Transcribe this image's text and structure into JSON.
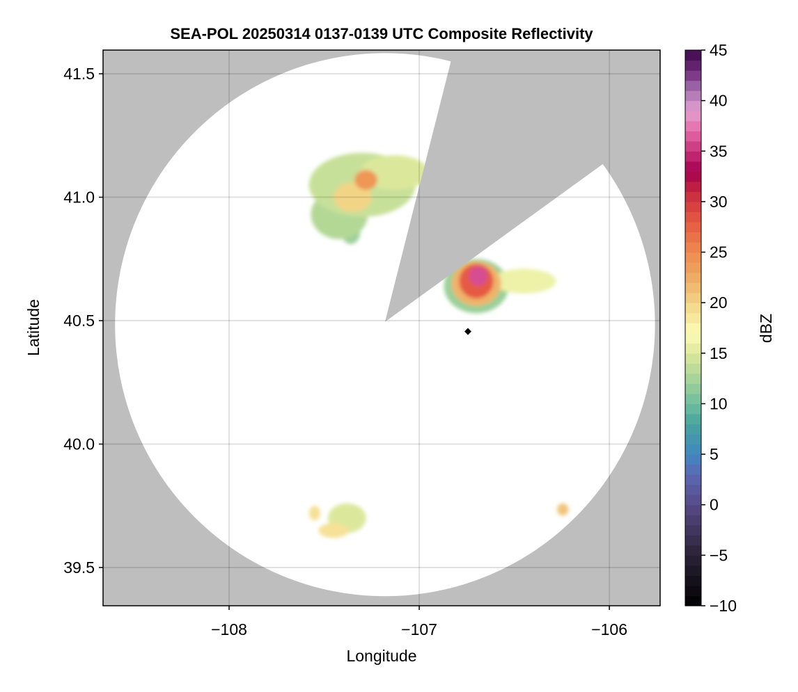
{
  "chart_data": {
    "type": "heatmap",
    "title": "SEA-POL 20250314 0137-0139 UTC Composite Reflectivity",
    "xlabel": "Longitude",
    "ylabel": "Latitude",
    "xlim": [
      -108.663,
      -105.733
    ],
    "ylim": [
      39.345,
      41.596
    ],
    "xticks": [
      -108,
      -107,
      -106
    ],
    "xtick_labels": [
      "−108",
      "−107",
      "−106"
    ],
    "yticks": [
      39.5,
      40.0,
      40.5,
      41.0,
      41.5
    ],
    "ytick_labels": [
      "39.5",
      "40.0",
      "40.5",
      "41.0",
      "41.5"
    ],
    "grid": true,
    "background_color": "#bebebe",
    "radar_coverage": {
      "center_lon": -107.18,
      "center_lat": 40.495,
      "radius_lon": 1.42,
      "radius_lat": 1.1,
      "blocked_sector_edges": [
        [
          -106.84,
          41.53
        ],
        [
          -106.06,
          41.12
        ]
      ]
    },
    "marker": {
      "lon": -106.744,
      "lat": 40.456,
      "shape": "diamond",
      "color": "#000000"
    },
    "echoes": [
      {
        "lon": -107.3,
        "lat": 41.05,
        "rlon": 0.28,
        "rlat": 0.13,
        "dbz": 14
      },
      {
        "lon": -107.42,
        "lat": 40.93,
        "rlon": 0.15,
        "rlat": 0.1,
        "dbz": 13
      },
      {
        "lon": -107.13,
        "lat": 41.1,
        "rlon": 0.18,
        "rlat": 0.07,
        "dbz": 15
      },
      {
        "lon": -107.36,
        "lat": 40.86,
        "rlon": 0.05,
        "rlat": 0.05,
        "dbz": 12
      },
      {
        "lon": -107.35,
        "lat": 41.0,
        "rlon": 0.1,
        "rlat": 0.06,
        "dbz": 20
      },
      {
        "lon": -107.28,
        "lat": 41.07,
        "rlon": 0.06,
        "rlat": 0.04,
        "dbz": 24
      },
      {
        "lon": -106.7,
        "lat": 40.64,
        "rlon": 0.17,
        "rlat": 0.11,
        "dbz": 12
      },
      {
        "lon": -106.45,
        "lat": 40.66,
        "rlon": 0.17,
        "rlat": 0.05,
        "dbz": 16
      },
      {
        "lon": -106.7,
        "lat": 40.65,
        "rlon": 0.13,
        "rlat": 0.09,
        "dbz": 22
      },
      {
        "lon": -106.7,
        "lat": 40.66,
        "rlon": 0.09,
        "rlat": 0.07,
        "dbz": 28
      },
      {
        "lon": -106.69,
        "lat": 40.68,
        "rlon": 0.05,
        "rlat": 0.04,
        "dbz": 36
      },
      {
        "lon": -107.38,
        "lat": 39.7,
        "rlon": 0.1,
        "rlat": 0.06,
        "dbz": 15
      },
      {
        "lon": -107.45,
        "lat": 39.65,
        "rlon": 0.08,
        "rlat": 0.03,
        "dbz": 19
      },
      {
        "lon": -107.55,
        "lat": 39.72,
        "rlon": 0.03,
        "rlat": 0.03,
        "dbz": 19
      },
      {
        "lon": -106.245,
        "lat": 39.735,
        "rlon": 0.03,
        "rlat": 0.025,
        "dbz": 21
      }
    ],
    "colorbar": {
      "label": "dBZ",
      "range": [
        -10,
        45
      ],
      "ticks": [
        -10,
        -5,
        0,
        5,
        10,
        15,
        20,
        25,
        30,
        35,
        40,
        45
      ],
      "tick_labels": [
        "−10",
        "−5",
        "0",
        "5",
        "10",
        "15",
        "20",
        "25",
        "30",
        "35",
        "40",
        "45"
      ],
      "stops": [
        [
          -10,
          "#000000"
        ],
        [
          -5,
          "#2a2236"
        ],
        [
          0,
          "#574a86"
        ],
        [
          3,
          "#5b68b4"
        ],
        [
          5,
          "#3f88c0"
        ],
        [
          8,
          "#48a39e"
        ],
        [
          10,
          "#6cbf9e"
        ],
        [
          13,
          "#b3d896"
        ],
        [
          15,
          "#dbe89b"
        ],
        [
          17,
          "#fefbb5"
        ],
        [
          20,
          "#f2d486"
        ],
        [
          23,
          "#eea45e"
        ],
        [
          25,
          "#ee8a4e"
        ],
        [
          28,
          "#e55a42"
        ],
        [
          31,
          "#c8273e"
        ],
        [
          33,
          "#a3004f"
        ],
        [
          35,
          "#c8307a"
        ],
        [
          37,
          "#e56aa8"
        ],
        [
          39,
          "#e4a1d0"
        ],
        [
          41,
          "#a772b0"
        ],
        [
          43,
          "#6d2a7a"
        ],
        [
          45,
          "#3d0a4a"
        ]
      ]
    }
  }
}
